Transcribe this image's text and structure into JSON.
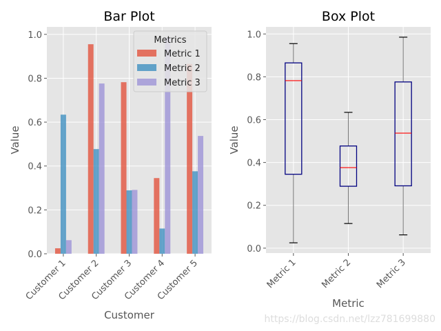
{
  "chart_data": [
    {
      "type": "bar",
      "title": "Bar Plot",
      "xlabel": "Customer",
      "ylabel": "Value",
      "categories": [
        "Customer 1",
        "Customer 2",
        "Customer 3",
        "Customer 4",
        "Customer 5"
      ],
      "series": [
        {
          "name": "Metric 1",
          "color": "#E24A33",
          "values": [
            0.025,
            0.955,
            0.782,
            0.345,
            0.865
          ]
        },
        {
          "name": "Metric 2",
          "color": "#348ABD",
          "values": [
            0.634,
            0.477,
            0.289,
            0.115,
            0.376
          ]
        },
        {
          "name": "Metric 3",
          "color": "#988ED5",
          "values": [
            0.062,
            0.776,
            0.291,
            0.985,
            0.537
          ]
        }
      ],
      "ylim": [
        0,
        1.034
      ],
      "yticks": [
        "0.0",
        "0.2",
        "0.4",
        "0.6",
        "0.8",
        "1.0"
      ],
      "legend": {
        "title": "Metrics",
        "placement": "top-right"
      },
      "grid": true
    },
    {
      "type": "box",
      "title": "Box Plot",
      "xlabel": "Metric",
      "ylabel": "Value",
      "categories": [
        "Metric 1",
        "Metric 2",
        "Metric 3"
      ],
      "boxes": [
        {
          "min": 0.025,
          "q1": 0.345,
          "median": 0.782,
          "q3": 0.865,
          "max": 0.955
        },
        {
          "min": 0.115,
          "q1": 0.289,
          "median": 0.376,
          "q3": 0.477,
          "max": 0.634
        },
        {
          "min": 0.062,
          "q1": 0.291,
          "median": 0.537,
          "q3": 0.776,
          "max": 0.985
        }
      ],
      "box_color": "#000080",
      "median_color": "#FF0000",
      "ylim": [
        -0.023,
        1.033
      ],
      "yticks": [
        "0.0",
        "0.2",
        "0.4",
        "0.6",
        "0.8",
        "1.0"
      ],
      "grid": true
    }
  ],
  "watermark": "https://blog.csdn.net/lzz781699880"
}
